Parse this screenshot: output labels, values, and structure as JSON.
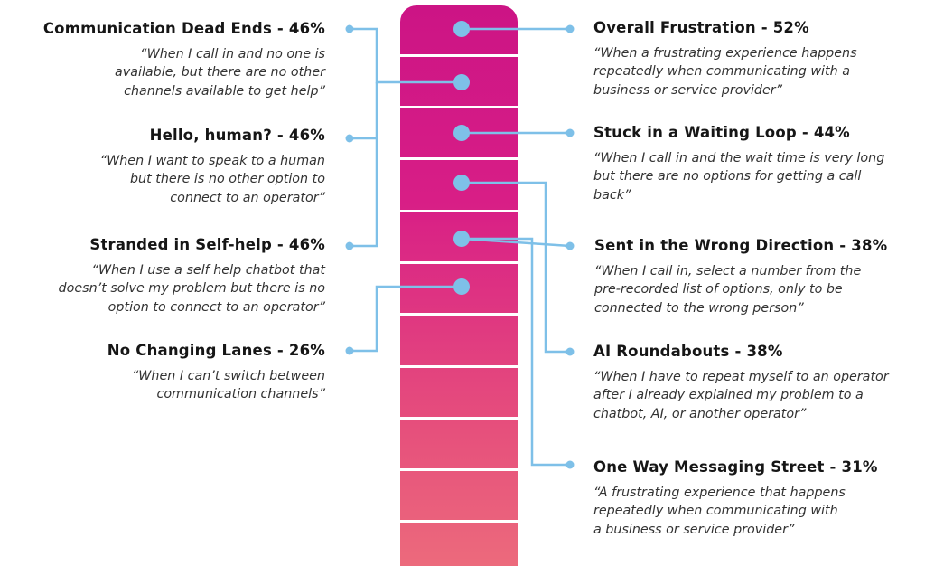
{
  "left_items": [
    {
      "title": "Communication Dead Ends - 46%",
      "quote_lines": [
        "“When I call in and no one is",
        "available, but there are no other",
        "channels available to get help”"
      ]
    },
    {
      "title": "Hello, human? - 46%",
      "quote_lines": [
        "“When I want to speak to a human",
        "but there is no other option to",
        "connect to an operator”"
      ]
    },
    {
      "title": "Stranded in Self-help - 46%",
      "quote_lines": [
        "“When I use a self help chatbot that",
        "doesn’t solve my problem but there is no",
        "option to connect to an operator”"
      ]
    },
    {
      "title": "No Changing Lanes - 26%",
      "quote_lines": [
        "“When I can’t switch between",
        "communication channels”"
      ]
    }
  ],
  "right_items": [
    {
      "title": "Overall Frustration - 52%",
      "quote_lines": [
        "“When a frustrating experience happens",
        "repeatedly when communicating with a",
        "business or service provider”"
      ]
    },
    {
      "title": "Stuck in a Waiting Loop - 44%",
      "quote_lines": [
        "“When I call in and the wait time is very long",
        "but there are no options for getting a call",
        "back”"
      ]
    },
    {
      "title": "Sent in the Wrong Direction - 38%",
      "quote_lines": [
        "“When I call in, select a number from the",
        "pre-recorded list of options, only to be",
        "connected to the wrong person”"
      ]
    },
    {
      "title": "AI Roundabouts - 38%",
      "quote_lines": [
        "“When I have to repeat myself to an operator",
        "after I already explained my problem to a",
        "chatbot, AI, or another operator”"
      ]
    },
    {
      "title": "One Way Messaging Street - 31%",
      "quote_lines": [
        "“A frustrating experience that happens",
        "repeatedly when communicating with",
        "a business or service provider”"
      ]
    }
  ],
  "colors": {
    "connector": "#7ec0e8",
    "meter_top": "#cc1485",
    "meter_bottom": "#ec6a7c",
    "text": "#161616"
  }
}
